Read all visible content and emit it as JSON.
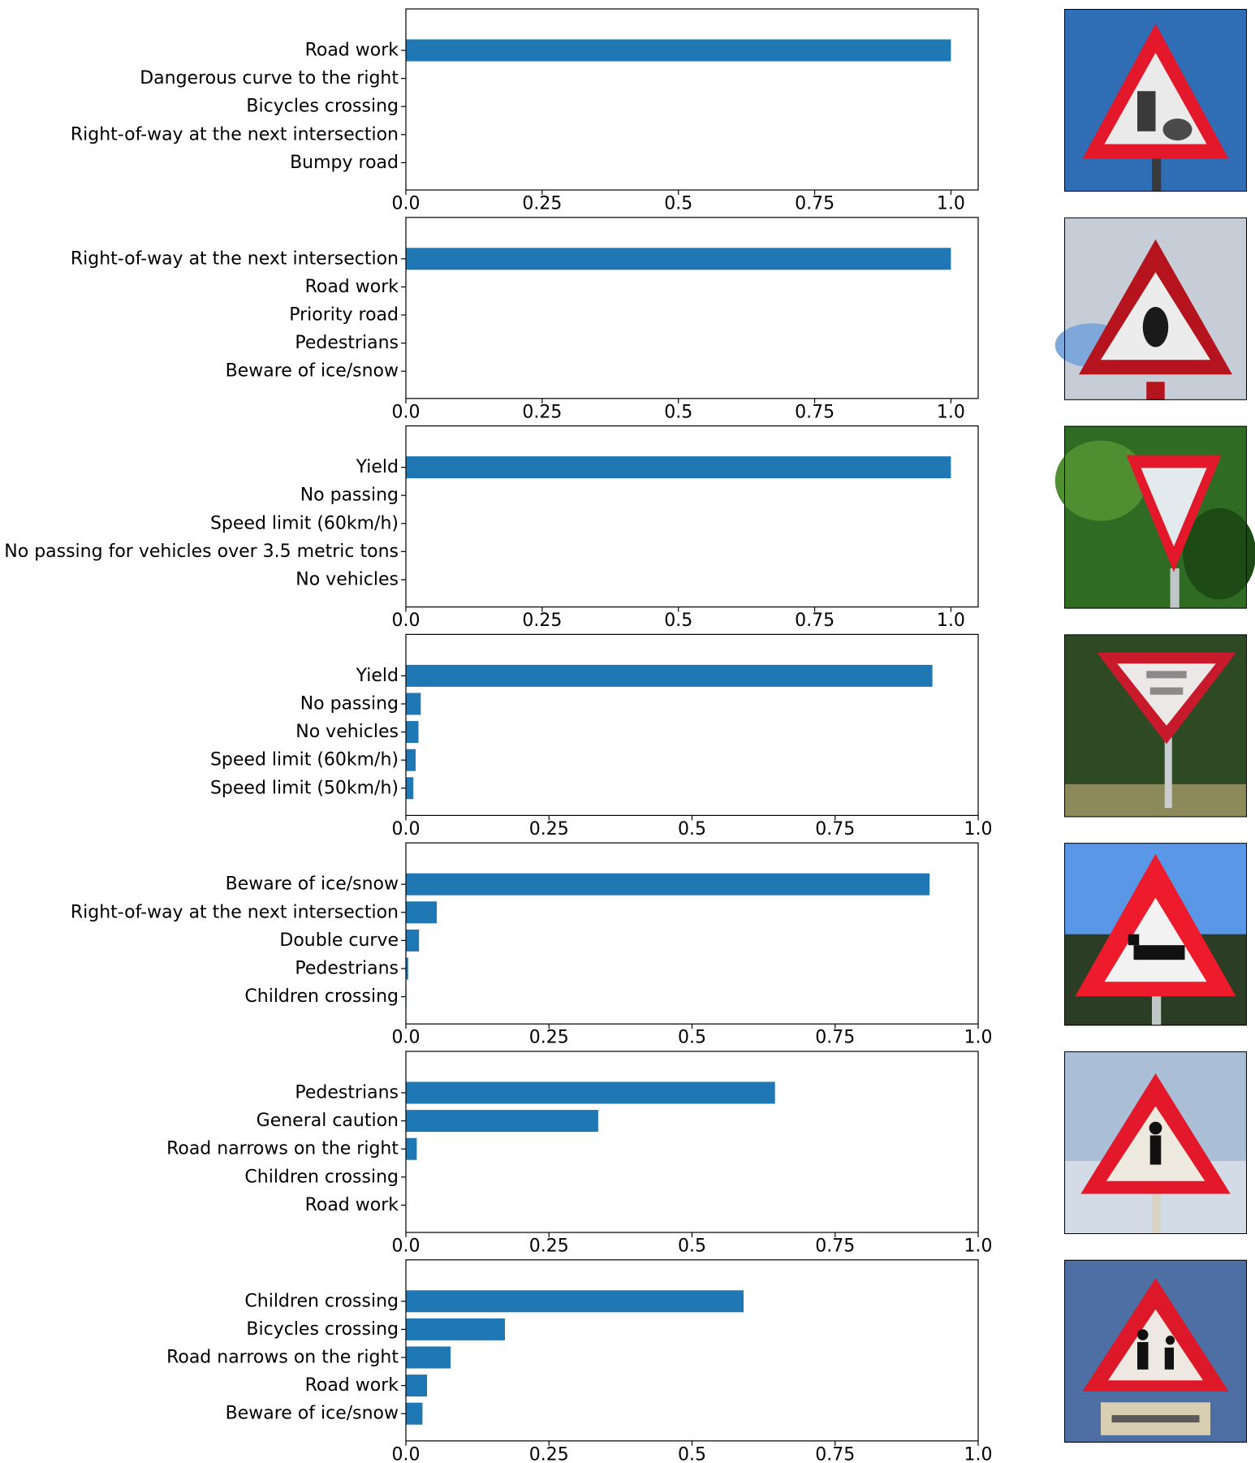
{
  "colors": {
    "bar": "#1f77b4",
    "axis": "#000000",
    "background": "#ffffff"
  },
  "chart_data": [
    {
      "type": "bar",
      "orientation": "horizontal",
      "categories": [
        "Road work",
        "Dangerous curve to the right",
        "Bicycles crossing",
        "Right-of-way at the next intersection",
        "Bumpy road"
      ],
      "values": [
        1.0,
        0.0,
        0.0,
        0.0,
        0.0
      ],
      "xlim": [
        0.0,
        1.05
      ],
      "xticks": [
        0.0,
        0.25,
        0.5,
        0.75,
        1.0
      ],
      "xtick_labels": [
        "0.0",
        "0.25",
        "0.5",
        "0.75",
        "1.0"
      ],
      "sign_image": "road-work-warning-sign"
    },
    {
      "type": "bar",
      "orientation": "horizontal",
      "categories": [
        "Right-of-way at the next intersection",
        "Road work",
        "Priority road",
        "Pedestrians",
        "Beware of ice/snow"
      ],
      "values": [
        1.0,
        0.0,
        0.0,
        0.0,
        0.0
      ],
      "xlim": [
        0.0,
        1.05
      ],
      "xticks": [
        0.0,
        0.25,
        0.5,
        0.75,
        1.0
      ],
      "xtick_labels": [
        "0.0",
        "0.25",
        "0.5",
        "0.75",
        "1.0"
      ],
      "sign_image": "right-of-way-warning-sign"
    },
    {
      "type": "bar",
      "orientation": "horizontal",
      "categories": [
        "Yield",
        "No passing",
        "Speed limit (60km/h)",
        "No passing for vehicles over 3.5 metric tons",
        "No vehicles"
      ],
      "values": [
        1.0,
        0.0,
        0.0,
        0.0,
        0.0
      ],
      "xlim": [
        0.0,
        1.05
      ],
      "xticks": [
        0.0,
        0.25,
        0.5,
        0.75,
        1.0
      ],
      "xtick_labels": [
        "0.0",
        "0.25",
        "0.5",
        "0.75",
        "1.0"
      ],
      "sign_image": "yield-sign-trees"
    },
    {
      "type": "bar",
      "orientation": "horizontal",
      "categories": [
        "Yield",
        "No passing",
        "No vehicles",
        "Speed limit (60km/h)",
        "Speed limit (50km/h)"
      ],
      "values": [
        0.92,
        0.026,
        0.022,
        0.017,
        0.013
      ],
      "xlim": [
        0.0,
        1.0
      ],
      "xticks": [
        0.0,
        0.25,
        0.5,
        0.75,
        1.0
      ],
      "xtick_labels": [
        "0.0",
        "0.25",
        "0.5",
        "0.75",
        "1.0"
      ],
      "sign_image": "give-way-sign"
    },
    {
      "type": "bar",
      "orientation": "horizontal",
      "categories": [
        "Beware of ice/snow",
        "Right-of-way at the next intersection",
        "Double curve",
        "Pedestrians",
        "Children crossing"
      ],
      "values": [
        0.915,
        0.054,
        0.023,
        0.004,
        0.001
      ],
      "xlim": [
        0.0,
        1.0
      ],
      "xticks": [
        0.0,
        0.25,
        0.5,
        0.75,
        1.0
      ],
      "xtick_labels": [
        "0.0",
        "0.25",
        "0.5",
        "0.75",
        "1.0"
      ],
      "sign_image": "animal-crossing-warning-sign"
    },
    {
      "type": "bar",
      "orientation": "horizontal",
      "categories": [
        "Pedestrians",
        "General caution",
        "Road narrows on the right",
        "Children crossing",
        "Road work"
      ],
      "values": [
        0.645,
        0.336,
        0.019,
        0.0,
        0.0
      ],
      "xlim": [
        0.0,
        1.0
      ],
      "xticks": [
        0.0,
        0.25,
        0.5,
        0.75,
        1.0
      ],
      "xtick_labels": [
        "0.0",
        "0.25",
        "0.5",
        "0.75",
        "1.0"
      ],
      "sign_image": "pedestrians-warning-sign"
    },
    {
      "type": "bar",
      "orientation": "horizontal",
      "categories": [
        "Children crossing",
        "Bicycles crossing",
        "Road narrows on the right",
        "Road work",
        "Beware of ice/snow"
      ],
      "values": [
        0.59,
        0.173,
        0.078,
        0.037,
        0.029
      ],
      "xlim": [
        0.0,
        1.0
      ],
      "xticks": [
        0.0,
        0.25,
        0.5,
        0.75,
        1.0
      ],
      "xtick_labels": [
        "0.0",
        "0.25",
        "0.5",
        "0.75",
        "1.0"
      ],
      "sign_image": "children-crossing-warning-sign"
    }
  ]
}
